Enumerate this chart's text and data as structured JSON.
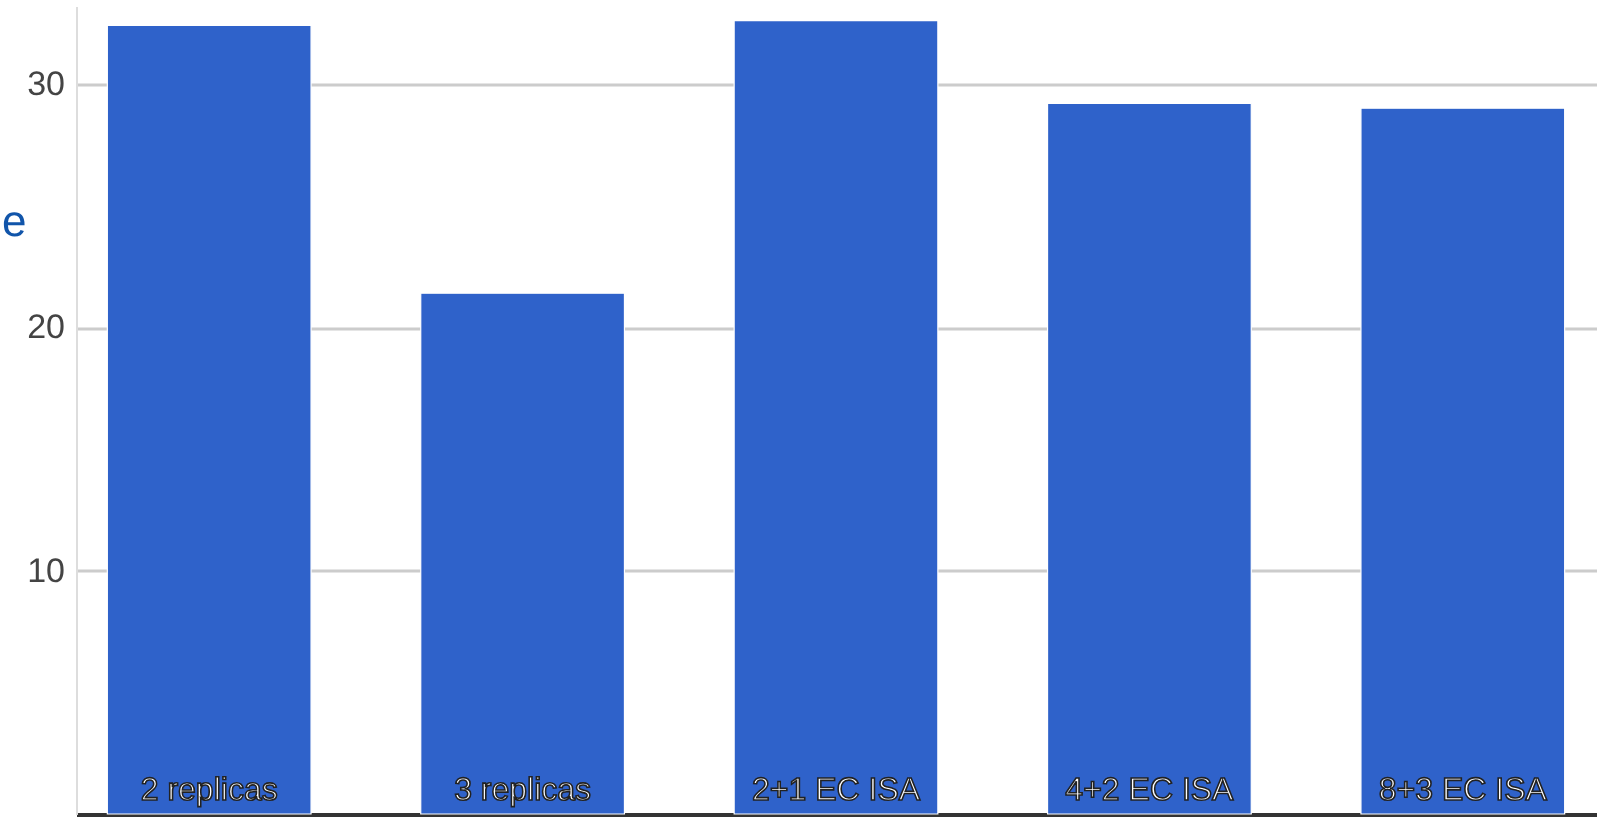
{
  "chart_data": {
    "type": "bar",
    "categories": [
      "2 replicas",
      "3 replicas",
      "2+1 EC ISA",
      "4+2 EC ISA",
      "8+3 EC ISA"
    ],
    "values": [
      32.4,
      21.4,
      32.6,
      29.2,
      29.0
    ],
    "color": "#2f62ca",
    "ylim": [
      0,
      33.2
    ],
    "yticks": [
      10,
      20,
      30
    ],
    "grid": "y",
    "annotations": [
      "e"
    ]
  }
}
